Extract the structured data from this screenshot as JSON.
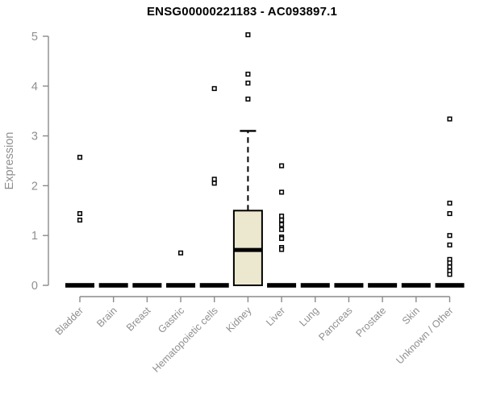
{
  "page": {
    "background": "#ffffff"
  },
  "chart_data": {
    "type": "boxplot",
    "title": "ENSG00000221183 - AC093897.1",
    "xlabel": "",
    "ylabel": "Expression",
    "ylim": [
      0,
      5
    ],
    "yticks": [
      0,
      1,
      2,
      3,
      4,
      5
    ],
    "grid": "off",
    "legend": "none",
    "categories": [
      "Bladder",
      "Brain",
      "Breast",
      "Gastric",
      "Hematopoietic cells",
      "Kidney",
      "Liver",
      "Lung",
      "Pancreas",
      "Prostate",
      "Skin",
      "Unknown / Other"
    ],
    "boxes": [
      {
        "category": "Bladder",
        "q1": 0,
        "median": 0,
        "q3": 0,
        "whisker_low": 0,
        "whisker_high": 0,
        "outliers": [
          2.57,
          1.44,
          1.31
        ]
      },
      {
        "category": "Brain",
        "q1": 0,
        "median": 0,
        "q3": 0,
        "whisker_low": 0,
        "whisker_high": 0,
        "outliers": []
      },
      {
        "category": "Breast",
        "q1": 0,
        "median": 0,
        "q3": 0,
        "whisker_low": 0,
        "whisker_high": 0,
        "outliers": []
      },
      {
        "category": "Gastric",
        "q1": 0,
        "median": 0,
        "q3": 0,
        "whisker_low": 0,
        "whisker_high": 0,
        "outliers": [
          0.65
        ]
      },
      {
        "category": "Hematopoietic cells",
        "q1": 0,
        "median": 0,
        "q3": 0,
        "whisker_low": 0,
        "whisker_high": 0,
        "outliers": [
          3.95,
          2.13,
          2.05
        ]
      },
      {
        "category": "Kidney",
        "q1": 0,
        "median": 0.71,
        "q3": 1.5,
        "whisker_low": 0,
        "whisker_high": 3.1,
        "outliers": [
          5.03,
          4.24,
          4.06,
          3.74
        ]
      },
      {
        "category": "Liver",
        "q1": 0,
        "median": 0,
        "q3": 0,
        "whisker_low": 0,
        "whisker_high": 0,
        "outliers": [
          2.4,
          1.87,
          1.39,
          1.31,
          1.22,
          1.12,
          0.97,
          0.94,
          0.76,
          0.72
        ]
      },
      {
        "category": "Lung",
        "q1": 0,
        "median": 0,
        "q3": 0,
        "whisker_low": 0,
        "whisker_high": 0,
        "outliers": []
      },
      {
        "category": "Pancreas",
        "q1": 0,
        "median": 0,
        "q3": 0,
        "whisker_low": 0,
        "whisker_high": 0,
        "outliers": []
      },
      {
        "category": "Prostate",
        "q1": 0,
        "median": 0,
        "q3": 0,
        "whisker_low": 0,
        "whisker_high": 0,
        "outliers": []
      },
      {
        "category": "Skin",
        "q1": 0,
        "median": 0,
        "q3": 0,
        "whisker_low": 0,
        "whisker_high": 0,
        "outliers": []
      },
      {
        "category": "Unknown / Other",
        "q1": 0,
        "median": 0,
        "q3": 0,
        "whisker_low": 0,
        "whisker_high": 0,
        "outliers": [
          3.34,
          1.65,
          1.44,
          1.0,
          0.81,
          0.52,
          0.45,
          0.37,
          0.29,
          0.22
        ]
      }
    ],
    "style": {
      "box_fill": "#ece8cf",
      "box_stroke": "#000000",
      "median_color": "#000000",
      "collapsed_bar_color": "#000000",
      "whisker_color": "#000000",
      "outlier_fill": "#ffffff",
      "outlier_stroke": "#000000",
      "axis_color": "#8a8a8a",
      "tick_label_color": "#8f8f8f",
      "axis_title_color": "#8f8f8f",
      "title_color": "#000000"
    }
  }
}
